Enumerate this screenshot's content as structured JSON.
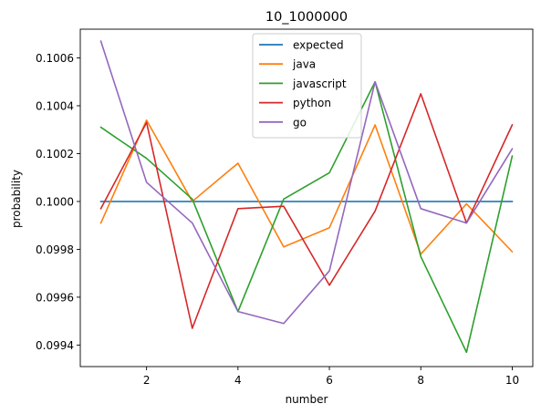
{
  "chart_data": {
    "type": "line",
    "title": "10_1000000",
    "xlabel": "number",
    "ylabel": "probability",
    "xlim": [
      0.55,
      10.45
    ],
    "ylim": [
      0.09931,
      0.10072
    ],
    "xticks": [
      2,
      4,
      6,
      8,
      10
    ],
    "yticks": [
      0.0994,
      0.0996,
      0.0998,
      0.1,
      0.1002,
      0.1004,
      0.1006
    ],
    "ytick_labels": [
      "0.0994",
      "0.0996",
      "0.0998",
      "0.1000",
      "0.1002",
      "0.1004",
      "0.1006"
    ],
    "grid": false,
    "legend_position": "upper center",
    "x": [
      1,
      2,
      3,
      4,
      5,
      6,
      7,
      8,
      9,
      10
    ],
    "series": [
      {
        "name": "expected",
        "color": "#1f77b4",
        "values": [
          0.1,
          0.1,
          0.1,
          0.1,
          0.1,
          0.1,
          0.1,
          0.1,
          0.1,
          0.1
        ]
      },
      {
        "name": "java",
        "color": "#ff7f0e",
        "values": [
          0.09991,
          0.10034,
          0.1,
          0.10016,
          0.09981,
          0.09989,
          0.10032,
          0.09978,
          0.09999,
          0.09979
        ]
      },
      {
        "name": "javascript",
        "color": "#2ca02c",
        "values": [
          0.10031,
          0.10018,
          0.10001,
          0.09954,
          0.10001,
          0.10012,
          0.1005,
          0.09977,
          0.09937,
          0.10019
        ]
      },
      {
        "name": "python",
        "color": "#d62728",
        "values": [
          0.09997,
          0.10033,
          0.09947,
          0.09997,
          0.09998,
          0.09965,
          0.09996,
          0.10045,
          0.09991,
          0.10032
        ]
      },
      {
        "name": "go",
        "color": "#9467bd",
        "values": [
          0.10067,
          0.10008,
          0.09991,
          0.09954,
          0.09949,
          0.09971,
          0.1005,
          0.09997,
          0.09991,
          0.10022
        ]
      }
    ]
  }
}
